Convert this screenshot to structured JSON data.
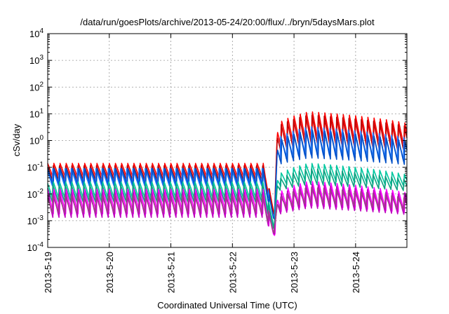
{
  "chart_data": {
    "type": "line",
    "title": "/data/run/goesPlots/archive/2013-05-24/20:00/flux/../bryn/5daysMars.plot",
    "xlabel": "Coordinated Universal Time (UTC)",
    "ylabel": "cSv/day",
    "yscale": "log",
    "ylim": [
      0.0001,
      10000
    ],
    "yticks": [
      {
        "value": 0.0001,
        "base": "10",
        "exp": "-4"
      },
      {
        "value": 0.001,
        "base": "10",
        "exp": "-3"
      },
      {
        "value": 0.01,
        "base": "10",
        "exp": "-2"
      },
      {
        "value": 0.1,
        "base": "10",
        "exp": "-1"
      },
      {
        "value": 1,
        "base": "10",
        "exp": "0"
      },
      {
        "value": 10,
        "base": "10",
        "exp": "1"
      },
      {
        "value": 100,
        "base": "10",
        "exp": "2"
      },
      {
        "value": 1000,
        "base": "10",
        "exp": "3"
      },
      {
        "value": 10000,
        "base": "10",
        "exp": "4"
      }
    ],
    "xlim": [
      "2013-05-19 00:00",
      "2013-05-24 20:00"
    ],
    "xticks": [
      "2013-5-19",
      "2013-5-20",
      "2013-5-21",
      "2013-5-22",
      "2013-5-23",
      "2013-5-24"
    ],
    "grid": true,
    "legend": "none",
    "series": [
      {
        "color": "#ff0000",
        "low": 0.035,
        "high": 0.14,
        "event_low": 0.5,
        "event_high": 12,
        "drop_min": 0.0018
      },
      {
        "color": "#c00000",
        "low": 0.03,
        "high": 0.12,
        "event_low": 0.4,
        "event_high": 10,
        "drop_min": 0.0016
      },
      {
        "color": "#1f77ff",
        "low": 0.02,
        "high": 0.1,
        "event_low": 0.2,
        "event_high": 4,
        "drop_min": 0.0012
      },
      {
        "color": "#0050c8",
        "low": 0.018,
        "high": 0.09,
        "event_low": 0.12,
        "event_high": 2.5,
        "drop_min": 0.001
      },
      {
        "color": "#00c8a0",
        "low": 0.006,
        "high": 0.03,
        "event_low": 0.02,
        "event_high": 0.15,
        "drop_min": 0.0006
      },
      {
        "color": "#10a080",
        "low": 0.005,
        "high": 0.025,
        "event_low": 0.015,
        "event_high": 0.1,
        "drop_min": 0.0005
      },
      {
        "color": "#ff00ff",
        "low": 0.0015,
        "high": 0.015,
        "event_low": 0.002,
        "event_high": 0.03,
        "drop_min": 0.00025
      },
      {
        "color": "#c000c0",
        "low": 0.0012,
        "high": 0.012,
        "event_low": 0.0018,
        "event_high": 0.025,
        "drop_min": 0.0003
      },
      {
        "color": "#a0408a",
        "low": 0.002,
        "high": 0.01,
        "event_low": 0.003,
        "event_high": 0.02,
        "drop_min": 0.00035
      }
    ],
    "event": {
      "drop_start": "2013-05-22 12:00",
      "drop_min_time": "2013-05-22 16:00",
      "onset": "2013-05-22 16:30",
      "peak": "2013-05-23 06:00"
    },
    "period_hours": 2.4
  }
}
